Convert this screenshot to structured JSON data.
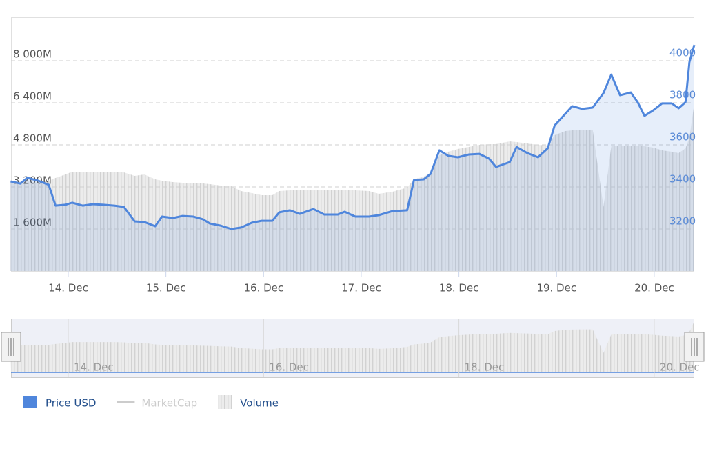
{
  "chart_data": {
    "type": "line",
    "x": [
      13.41,
      13.51,
      13.58,
      13.69,
      13.8,
      13.87,
      13.97,
      14.04,
      14.15,
      14.25,
      14.36,
      14.47,
      14.57,
      14.68,
      14.78,
      14.89,
      14.96,
      15.07,
      15.17,
      15.28,
      15.38,
      15.45,
      15.56,
      15.67,
      15.77,
      15.88,
      15.98,
      16.09,
      16.16,
      16.27,
      16.37,
      16.51,
      16.62,
      16.76,
      16.83,
      16.94,
      17.08,
      17.18,
      17.32,
      17.47,
      17.54,
      17.64,
      17.71,
      17.8,
      17.89,
      17.99,
      18.1,
      18.21,
      18.31,
      18.38,
      18.52,
      18.59,
      18.7,
      18.81,
      18.91,
      18.98,
      19.09,
      19.16,
      19.26,
      19.37,
      19.48,
      19.56,
      19.65,
      19.76,
      19.83,
      19.9,
      19.99,
      20.08,
      20.18,
      20.25,
      20.32,
      20.36,
      20.41
    ],
    "series": [
      {
        "name": "Price USD",
        "color": "#4f86dc",
        "axis": "y2",
        "values": [
          3426,
          3416,
          3443,
          3430,
          3410,
          3311,
          3315,
          3325,
          3311,
          3318,
          3315,
          3311,
          3305,
          3236,
          3233,
          3213,
          3259,
          3252,
          3262,
          3259,
          3246,
          3226,
          3216,
          3200,
          3207,
          3230,
          3239,
          3239,
          3279,
          3289,
          3272,
          3295,
          3269,
          3269,
          3282,
          3259,
          3259,
          3266,
          3285,
          3289,
          3433,
          3436,
          3462,
          3574,
          3548,
          3541,
          3554,
          3557,
          3534,
          3495,
          3518,
          3590,
          3561,
          3541,
          3584,
          3692,
          3748,
          3784,
          3771,
          3777,
          3846,
          3934,
          3836,
          3849,
          3803,
          3738,
          3764,
          3797,
          3797,
          3774,
          3803,
          3993,
          4075
        ]
      },
      {
        "name": "MarketCap",
        "color": "#cccccc",
        "visible": false
      },
      {
        "name": "Volume",
        "color": "#e6e6e6",
        "values": [
          3436,
          3436,
          3410,
          3357,
          3436,
          3541,
          3672,
          3777,
          3777,
          3777,
          3777,
          3777,
          3751,
          3620,
          3672,
          3489,
          3436,
          3384,
          3357,
          3357,
          3331,
          3305,
          3253,
          3226,
          3043,
          2964,
          2885,
          2885,
          3043,
          3069,
          3069,
          3069,
          3069,
          3069,
          3069,
          3069,
          3043,
          2938,
          3016,
          3174,
          3489,
          3594,
          3725,
          4407,
          4538,
          4643,
          4721,
          4800,
          4826,
          4826,
          4931,
          4905,
          4853,
          4800,
          4774,
          5167,
          5324,
          5351,
          5377,
          5377,
          2439,
          4748,
          4774,
          4774,
          4748,
          4748,
          4695,
          4590,
          4538,
          4485,
          4669,
          5062,
          6374
        ]
      }
    ],
    "xlim": [
      13.414,
      20.41
    ],
    "xticks": [
      {
        "value": 14,
        "label": "14. Dec"
      },
      {
        "value": 15,
        "label": "15. Dec"
      },
      {
        "value": 16,
        "label": "16. Dec"
      },
      {
        "value": 17,
        "label": "17. Dec"
      },
      {
        "value": 18,
        "label": "18. Dec"
      },
      {
        "value": 19,
        "label": "19. Dec"
      },
      {
        "value": 20,
        "label": "20. Dec"
      }
    ],
    "ylim": [
      0,
      9652
    ],
    "yticks": [
      {
        "value": 1600,
        "label": "1 600M"
      },
      {
        "value": 3200,
        "label": "3 200M"
      },
      {
        "value": 4800,
        "label": "4 800M"
      },
      {
        "value": 6400,
        "label": "6 400M"
      },
      {
        "value": 8000,
        "label": "8 000M"
      }
    ],
    "y2lim": [
      3000,
      4206.6
    ],
    "y2ticks": [
      3200,
      3400,
      3600,
      3800,
      4000
    ],
    "grid": true,
    "navigator": {
      "xticks": [
        {
          "value": 14,
          "label": "14. Dec"
        },
        {
          "value": 16,
          "label": "16. Dec"
        },
        {
          "value": 18,
          "label": "18. Dec"
        },
        {
          "value": 20,
          "label": "20. Dec"
        }
      ]
    }
  }
}
